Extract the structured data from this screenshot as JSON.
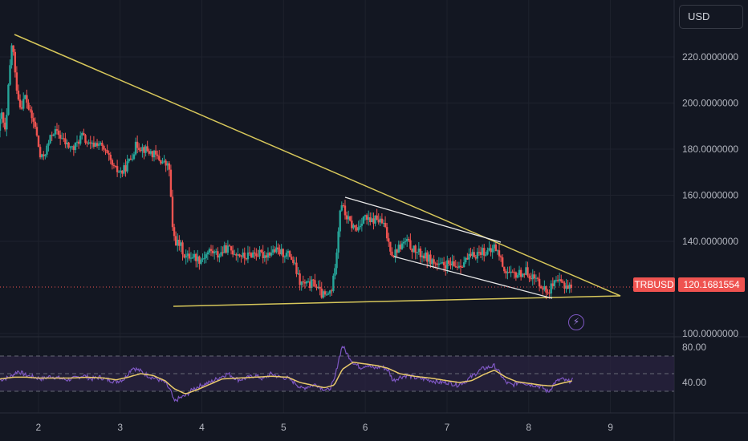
{
  "currency_selector": "USD",
  "symbol_tag": "TRBUSD",
  "price_tag": "120.1681554",
  "lightning_icon": "lightning-icon",
  "colors": {
    "background": "#131722",
    "up": "#26a69a",
    "down": "#ef5350",
    "trendline_yellow": "#d6c65a",
    "channel_white": "#e8e8e8",
    "rsi_line": "#7e57c2",
    "rsi_ma": "#e8c96a",
    "rsi_band": "#2a2340",
    "price_line": "#ef5350",
    "axis_text": "#b2b5be"
  },
  "chart_data": [
    {
      "type": "candlestick",
      "symbol": "TRBUSD",
      "y_ticks": [
        "220.0000000",
        "200.0000000",
        "180.0000000",
        "160.0000000",
        "140.0000000",
        "100.0000000"
      ],
      "ylim": [
        92,
        250
      ],
      "x_ticks": [
        "2",
        "3",
        "4",
        "5",
        "6",
        "7",
        "8",
        "9"
      ],
      "xlim": [
        1.53,
        9.78
      ],
      "last_price": 120.1681554,
      "price_path": [
        [
          1.53,
          188
        ],
        [
          1.57,
          195
        ],
        [
          1.62,
          186
        ],
        [
          1.65,
          205
        ],
        [
          1.7,
          228
        ],
        [
          1.74,
          210
        ],
        [
          1.8,
          198
        ],
        [
          1.86,
          203
        ],
        [
          1.92,
          195
        ],
        [
          1.98,
          190
        ],
        [
          2.05,
          175
        ],
        [
          2.12,
          180
        ],
        [
          2.2,
          188
        ],
        [
          2.28,
          186
        ],
        [
          2.36,
          182
        ],
        [
          2.45,
          180
        ],
        [
          2.55,
          186
        ],
        [
          2.65,
          181
        ],
        [
          2.75,
          183
        ],
        [
          2.85,
          178
        ],
        [
          2.95,
          171
        ],
        [
          3.05,
          170
        ],
        [
          3.15,
          176
        ],
        [
          3.22,
          182
        ],
        [
          3.32,
          180
        ],
        [
          3.42,
          178
        ],
        [
          3.52,
          175
        ],
        [
          3.62,
          172
        ],
        [
          3.64,
          160
        ],
        [
          3.66,
          145
        ],
        [
          3.7,
          140
        ],
        [
          3.76,
          138
        ],
        [
          3.82,
          133
        ],
        [
          3.9,
          134
        ],
        [
          4.0,
          132
        ],
        [
          4.12,
          136
        ],
        [
          4.22,
          134
        ],
        [
          4.32,
          137
        ],
        [
          4.45,
          135
        ],
        [
          4.55,
          133
        ],
        [
          4.65,
          135
        ],
        [
          4.78,
          134
        ],
        [
          4.9,
          136
        ],
        [
          5.0,
          135
        ],
        [
          5.1,
          134
        ],
        [
          5.15,
          130
        ],
        [
          5.22,
          122
        ],
        [
          5.32,
          121
        ],
        [
          5.4,
          122
        ],
        [
          5.48,
          117
        ],
        [
          5.55,
          116
        ],
        [
          5.62,
          120
        ],
        [
          5.68,
          140
        ],
        [
          5.72,
          158
        ],
        [
          5.77,
          152
        ],
        [
          5.85,
          147
        ],
        [
          5.92,
          145
        ],
        [
          6.0,
          151
        ],
        [
          6.08,
          148
        ],
        [
          6.15,
          150
        ],
        [
          6.25,
          147
        ],
        [
          6.3,
          140
        ],
        [
          6.36,
          134
        ],
        [
          6.42,
          137
        ],
        [
          6.52,
          140
        ],
        [
          6.62,
          136
        ],
        [
          6.72,
          134
        ],
        [
          6.82,
          132
        ],
        [
          6.92,
          129
        ],
        [
          7.02,
          130
        ],
        [
          7.12,
          129
        ],
        [
          7.22,
          131
        ],
        [
          7.35,
          134
        ],
        [
          7.45,
          136
        ],
        [
          7.55,
          135
        ],
        [
          7.6,
          138
        ],
        [
          7.66,
          134
        ],
        [
          7.72,
          128
        ],
        [
          7.8,
          125
        ],
        [
          7.9,
          126
        ],
        [
          8.0,
          127
        ],
        [
          8.08,
          124
        ],
        [
          8.16,
          122
        ],
        [
          8.24,
          118
        ],
        [
          8.32,
          121
        ],
        [
          8.4,
          122
        ],
        [
          8.48,
          121
        ],
        [
          8.54,
          120.2
        ]
      ]
    },
    {
      "type": "line",
      "indicator": "RSI",
      "y_ticks": [
        "80.00",
        "40.00"
      ],
      "ylim": [
        2,
        102
      ],
      "band": [
        30,
        70
      ],
      "midline": 50,
      "series": [
        {
          "values": [
            [
              1.53,
              43
            ],
            [
              1.65,
              46
            ],
            [
              1.75,
              53
            ],
            [
              1.85,
              48
            ],
            [
              1.95,
              46
            ],
            [
              2.05,
              44
            ],
            [
              2.15,
              47
            ],
            [
              2.25,
              45
            ],
            [
              2.35,
              43
            ],
            [
              2.45,
              45
            ],
            [
              2.55,
              48
            ],
            [
              2.65,
              44
            ],
            [
              2.75,
              46
            ],
            [
              2.85,
              43
            ],
            [
              2.95,
              41
            ],
            [
              3.05,
              44
            ],
            [
              3.15,
              57
            ],
            [
              3.25,
              53
            ],
            [
              3.35,
              47
            ],
            [
              3.45,
              44
            ],
            [
              3.55,
              40
            ],
            [
              3.62,
              30
            ],
            [
              3.66,
              18
            ],
            [
              3.72,
              22
            ],
            [
              3.8,
              25
            ],
            [
              3.9,
              33
            ],
            [
              4.0,
              37
            ],
            [
              4.1,
              40
            ],
            [
              4.2,
              45
            ],
            [
              4.32,
              50
            ],
            [
              4.45,
              43
            ],
            [
              4.55,
              45
            ],
            [
              4.65,
              48
            ],
            [
              4.75,
              44
            ],
            [
              4.85,
              50
            ],
            [
              4.95,
              46
            ],
            [
              5.05,
              45
            ],
            [
              5.15,
              39
            ],
            [
              5.22,
              33
            ],
            [
              5.32,
              36
            ],
            [
              5.4,
              38
            ],
            [
              5.48,
              33
            ],
            [
              5.55,
              31
            ],
            [
              5.62,
              42
            ],
            [
              5.68,
              68
            ],
            [
              5.72,
              82
            ],
            [
              5.78,
              72
            ],
            [
              5.86,
              62
            ],
            [
              5.94,
              57
            ],
            [
              6.02,
              60
            ],
            [
              6.1,
              56
            ],
            [
              6.2,
              58
            ],
            [
              6.28,
              54
            ],
            [
              6.34,
              42
            ],
            [
              6.42,
              46
            ],
            [
              6.52,
              48
            ],
            [
              6.62,
              45
            ],
            [
              6.72,
              44
            ],
            [
              6.82,
              42
            ],
            [
              6.92,
              40
            ],
            [
              7.02,
              40
            ],
            [
              7.12,
              37
            ],
            [
              7.22,
              41
            ],
            [
              7.32,
              48
            ],
            [
              7.42,
              55
            ],
            [
              7.5,
              57
            ],
            [
              7.58,
              59
            ],
            [
              7.65,
              50
            ],
            [
              7.72,
              40
            ],
            [
              7.8,
              37
            ],
            [
              7.9,
              41
            ],
            [
              8.0,
              38
            ],
            [
              8.08,
              37
            ],
            [
              8.16,
              35
            ],
            [
              8.24,
              29
            ],
            [
              8.32,
              40
            ],
            [
              8.4,
              44
            ],
            [
              8.48,
              41
            ],
            [
              8.54,
              43
            ]
          ]
        },
        {
          "values": [
            [
              1.53,
              44
            ],
            [
              1.7,
              46
            ],
            [
              1.85,
              46
            ],
            [
              2.0,
              45
            ],
            [
              2.2,
              45
            ],
            [
              2.4,
              45
            ],
            [
              2.6,
              46
            ],
            [
              2.8,
              45
            ],
            [
              2.95,
              43
            ],
            [
              3.1,
              46
            ],
            [
              3.25,
              50
            ],
            [
              3.4,
              48
            ],
            [
              3.55,
              42
            ],
            [
              3.66,
              33
            ],
            [
              3.8,
              27
            ],
            [
              3.95,
              32
            ],
            [
              4.1,
              38
            ],
            [
              4.25,
              44
            ],
            [
              4.45,
              45
            ],
            [
              4.65,
              46
            ],
            [
              4.85,
              47
            ],
            [
              5.05,
              46
            ],
            [
              5.2,
              40
            ],
            [
              5.35,
              37
            ],
            [
              5.5,
              34
            ],
            [
              5.62,
              37
            ],
            [
              5.72,
              55
            ],
            [
              5.85,
              63
            ],
            [
              6.0,
              61
            ],
            [
              6.15,
              59
            ],
            [
              6.28,
              56
            ],
            [
              6.42,
              50
            ],
            [
              6.6,
              47
            ],
            [
              6.8,
              45
            ],
            [
              7.0,
              42
            ],
            [
              7.15,
              40
            ],
            [
              7.3,
              42
            ],
            [
              7.45,
              49
            ],
            [
              7.58,
              54
            ],
            [
              7.72,
              46
            ],
            [
              7.85,
              41
            ],
            [
              8.0,
              39
            ],
            [
              8.15,
              37
            ],
            [
              8.28,
              36
            ],
            [
              8.4,
              39
            ],
            [
              8.54,
              42
            ]
          ]
        }
      ]
    }
  ]
}
